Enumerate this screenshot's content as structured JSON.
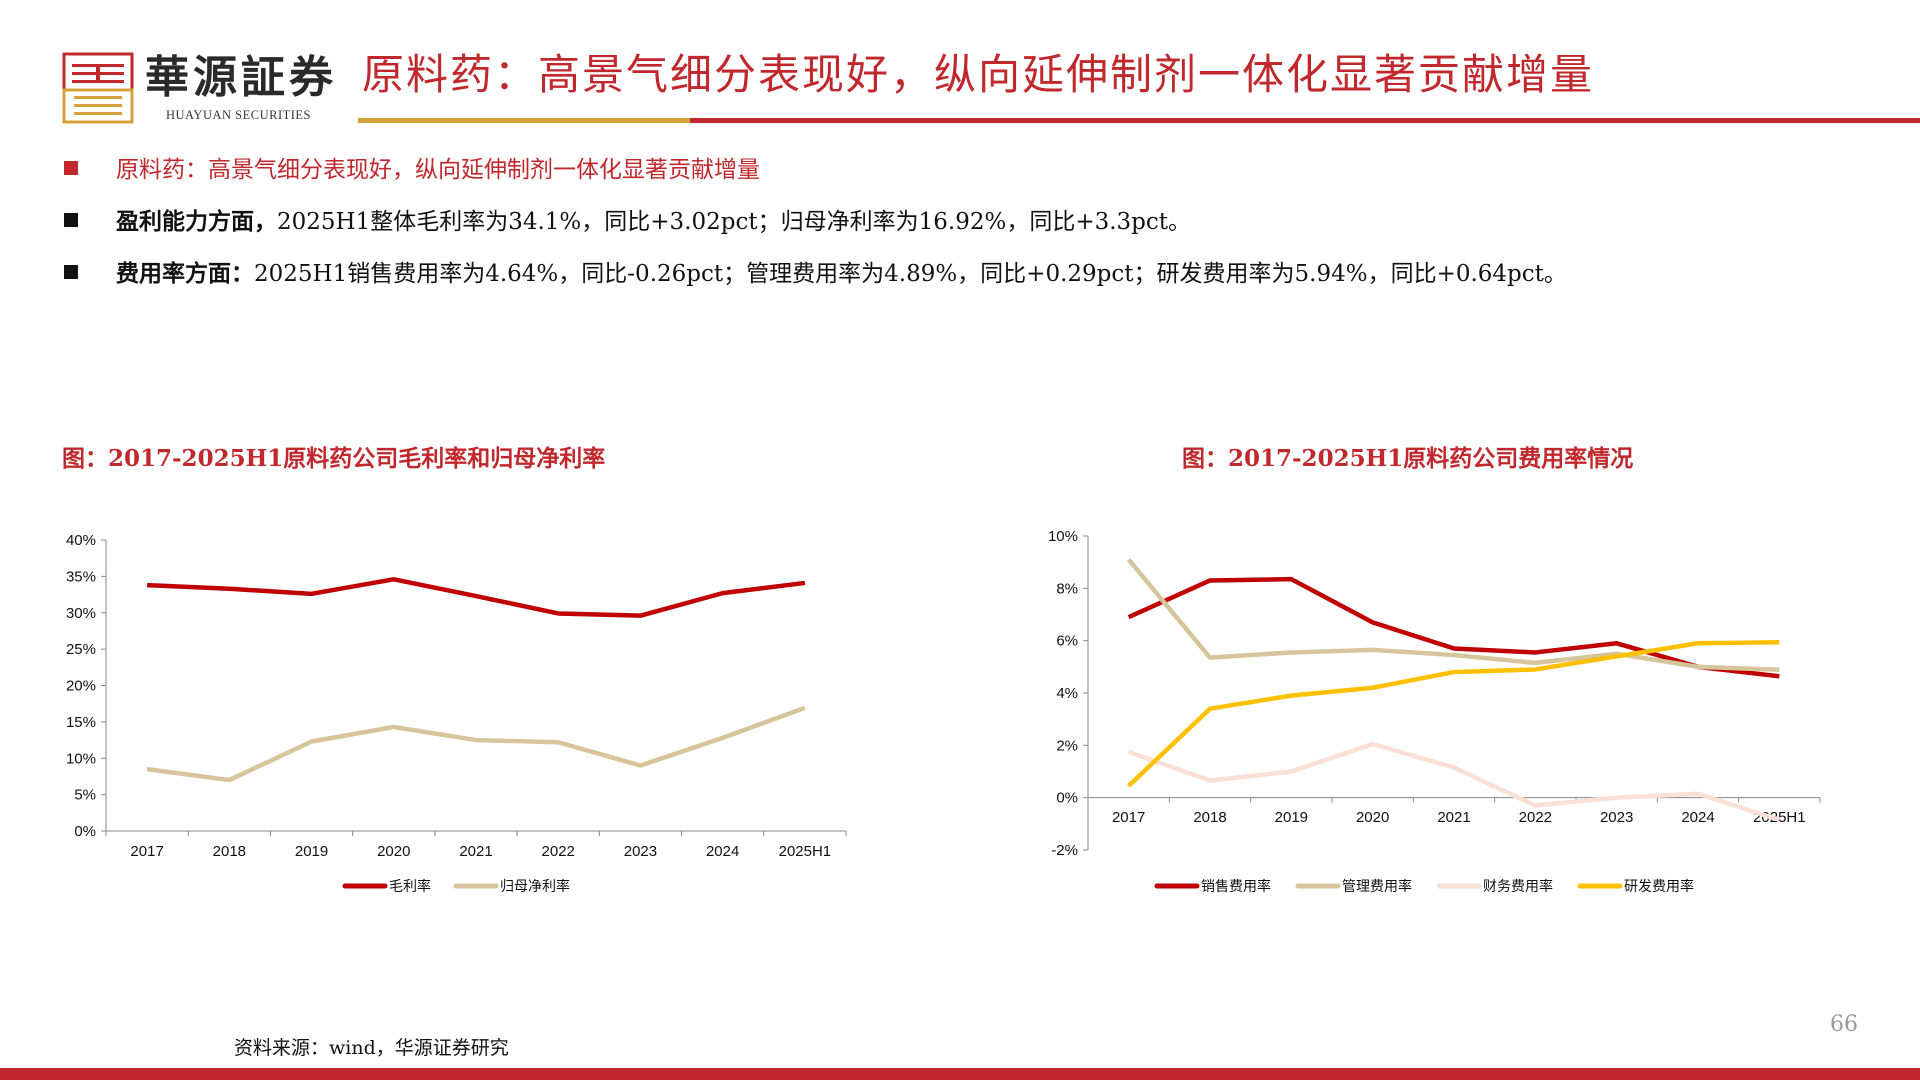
{
  "header": {
    "logo_cn": "華源証券",
    "logo_en": "HUAYUAN SECURITIES",
    "title": "原料药：高景气细分表现好，纵向延伸制剂一体化显著贡献增量"
  },
  "bullets": [
    {
      "bold": "",
      "text": "原料药：高景气细分表现好，纵向延伸制剂一体化显著贡献增量"
    },
    {
      "bold": "盈利能力方面，",
      "text": "2025H1整体毛利率为34.1%，同比+3.02pct；归母净利率为16.92%，同比+3.3pct。"
    },
    {
      "bold": "费用率方面：",
      "text": "2025H1销售费用率为4.64%，同比-0.26pct；管理费用率为4.89%，同比+0.29pct；研发费用率为5.94%，同比+0.64pct。"
    }
  ],
  "chart_data": [
    {
      "type": "line",
      "title": "图：2017-2025H1原料药公司毛利率和归母净利率",
      "categories": [
        "2017",
        "2018",
        "2019",
        "2020",
        "2021",
        "2022",
        "2023",
        "2024",
        "2025H1"
      ],
      "ylim": [
        0,
        40
      ],
      "yticks": [
        "0%",
        "5%",
        "10%",
        "15%",
        "20%",
        "25%",
        "30%",
        "35%",
        "40%"
      ],
      "yunit": "%",
      "grid": false,
      "legend": "bottom",
      "series": [
        {
          "name": "毛利率",
          "color": "#c00000",
          "values": [
            33.8,
            33.3,
            32.6,
            34.6,
            32.3,
            29.9,
            29.6,
            32.7,
            34.1
          ]
        },
        {
          "name": "归母净利率",
          "color": "#d6c49a",
          "values": [
            8.5,
            7.0,
            12.3,
            14.3,
            12.5,
            12.2,
            9.0,
            12.8,
            16.92
          ]
        }
      ]
    },
    {
      "type": "line",
      "title": "图：2017-2025H1原料药公司费用率情况",
      "categories": [
        "2017",
        "2018",
        "2019",
        "2020",
        "2021",
        "2022",
        "2023",
        "2024",
        "2025H1"
      ],
      "ylim": [
        -2,
        10
      ],
      "yticks": [
        "-2%",
        "0%",
        "2%",
        "4%",
        "6%",
        "8%",
        "10%"
      ],
      "yunit": "%",
      "grid": false,
      "legend": "bottom",
      "series": [
        {
          "name": "销售费用率",
          "color": "#c00000",
          "values": [
            6.9,
            8.3,
            8.35,
            6.7,
            5.7,
            5.55,
            5.9,
            5.0,
            4.64
          ]
        },
        {
          "name": "管理费用率",
          "color": "#d6c49a",
          "values": [
            9.1,
            5.35,
            5.55,
            5.65,
            5.45,
            5.15,
            5.5,
            5.0,
            4.89
          ]
        },
        {
          "name": "财务费用率",
          "color": "#f8e0d4",
          "values": [
            1.75,
            0.65,
            1.0,
            2.05,
            1.15,
            -0.3,
            0.0,
            0.15,
            -0.85
          ]
        },
        {
          "name": "研发费用率",
          "color": "#ffc000",
          "values": [
            0.45,
            3.4,
            3.9,
            4.2,
            4.8,
            4.9,
            5.4,
            5.9,
            5.94
          ]
        }
      ]
    }
  ],
  "footer": {
    "source": "资料来源：wind，华源证券研究",
    "page": "66"
  }
}
